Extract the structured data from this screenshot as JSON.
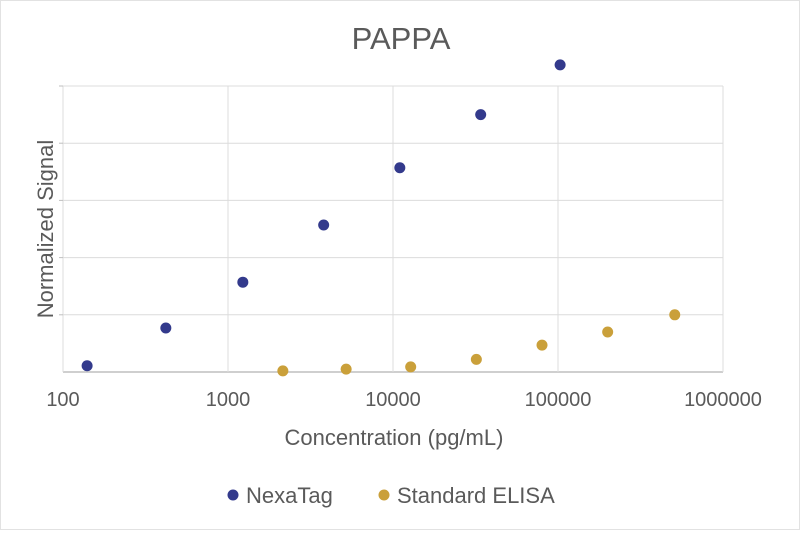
{
  "chart_data": {
    "type": "scatter",
    "title": "PAPPA",
    "xlabel": "Concentration (pg/mL)",
    "ylabel": "Normalized Signal",
    "x_scale": "log",
    "xlim": [
      100,
      1000000
    ],
    "ylim": [
      0,
      5
    ],
    "x_ticks": [
      "100",
      "1000",
      "10000",
      "100000",
      "1000000"
    ],
    "y_ticks": [
      0,
      1,
      2,
      3,
      4,
      5
    ],
    "grid": true,
    "legend_position": "bottom",
    "series": [
      {
        "name": "NexaTag",
        "color": "#333a8c",
        "x": [
          140,
          420,
          1230,
          3800,
          11000,
          34000,
          103000
        ],
        "y": [
          0.11,
          0.77,
          1.57,
          2.57,
          3.57,
          4.5,
          5.37
        ]
      },
      {
        "name": "Standard ELISA",
        "color": "#caa03a",
        "x": [
          2150,
          5200,
          12800,
          32000,
          80000,
          200000,
          510000
        ],
        "y": [
          0.02,
          0.05,
          0.09,
          0.22,
          0.47,
          0.7,
          1.0
        ]
      }
    ]
  }
}
